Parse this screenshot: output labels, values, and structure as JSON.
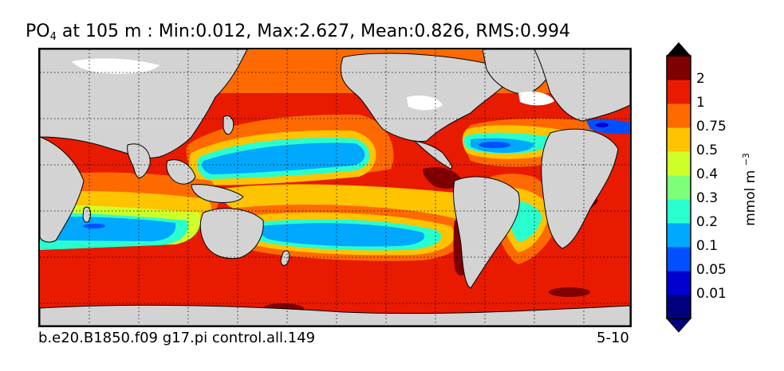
{
  "title": {
    "variable": "PO",
    "subscript": "4",
    "rest": " at 105 m : Min:0.012, Max:2.627, Mean:0.826, RMS:0.994"
  },
  "footer": {
    "case_name": "b.e20.B1850.f09 g17.pi control.all.149",
    "years": "5-10"
  },
  "colorbar": {
    "unit_text": "mmol m",
    "unit_exponent": "−3",
    "tick_labels": [
      "2",
      "1",
      "0.75",
      "0.5",
      "0.4",
      "0.3",
      "0.2",
      "0.1",
      "0.05",
      "0.01"
    ],
    "colors": [
      "#00007f",
      "#0000d0",
      "#0050ff",
      "#00a8ff",
      "#29ffce",
      "#7dff7a",
      "#ceff29",
      "#ffc400",
      "#ff6a00",
      "#e81a00",
      "#7f0000"
    ]
  },
  "map": {
    "land_color": "#d3d3d3",
    "ice_color": "#ffffff",
    "gridlines": "dotted"
  }
}
